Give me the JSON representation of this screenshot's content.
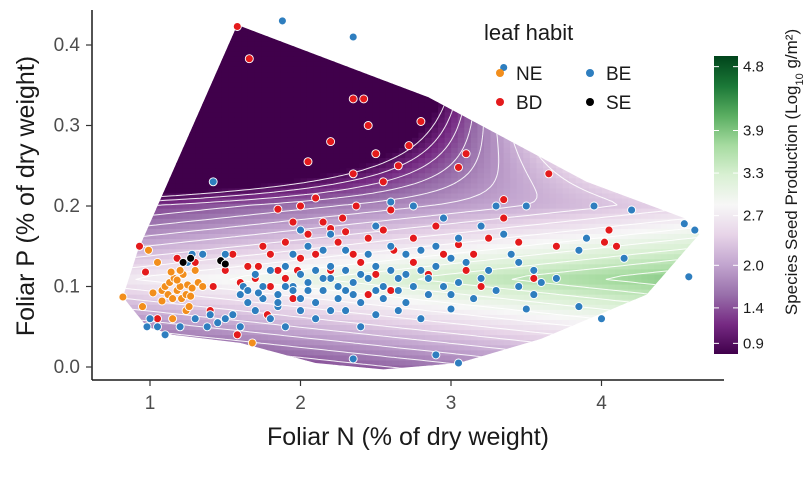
{
  "chart_data": {
    "type": "scatter",
    "xlabel": "Foliar N (% of dry weight)",
    "ylabel": "Foliar P (% of dry weight)",
    "xlim": [
      0.75,
      4.85
    ],
    "ylim": [
      -0.01,
      0.44
    ],
    "x_ticks": [
      1,
      2,
      3,
      4
    ],
    "y_ticks": [
      0.0,
      0.1,
      0.2,
      0.3,
      0.4
    ],
    "x_tick_labels": [
      "1",
      "2",
      "3",
      "4"
    ],
    "y_tick_labels": [
      "0.0",
      "0.1",
      "0.2",
      "0.3",
      "0.4"
    ],
    "grid": false,
    "legend": {
      "title": "leaf habit",
      "placement": "top-right",
      "entries": [
        {
          "name": "NE",
          "color": "#f28e1c"
        },
        {
          "name": "BE",
          "color": "#2e7ebf"
        },
        {
          "name": "BD",
          "color": "#e41a1c"
        },
        {
          "name": "SE",
          "color": "#000000"
        }
      ]
    },
    "colorbar": {
      "title_text": "Species Seed Production (Log",
      "title_sub": "10",
      "title_unit": " g/m²)",
      "ticks": [
        0.9,
        1.4,
        2.0,
        2.7,
        3.3,
        3.9,
        4.8
      ],
      "tick_labels": [
        "0.9",
        "1.4",
        "2.0",
        "2.7",
        "3.3",
        "3.9",
        "4.8"
      ],
      "range": [
        0.75,
        4.95
      ],
      "colors": [
        "#40004b",
        "#762a83",
        "#9970ab",
        "#c2a5cf",
        "#e7d4e8",
        "#f7f7f7",
        "#d9f0d3",
        "#a6dba0",
        "#5aae61",
        "#1b7837",
        "#00441b"
      ]
    },
    "surface": {
      "hull": [
        [
          0.82,
          0.087
        ],
        [
          0.98,
          0.05
        ],
        [
          1.15,
          0.04
        ],
        [
          1.6,
          0.03
        ],
        [
          2.1,
          0.005
        ],
        [
          2.55,
          -0.003
        ],
        [
          3.05,
          0.005
        ],
        [
          3.6,
          0.035
        ],
        [
          4.3,
          0.09
        ],
        [
          4.65,
          0.165
        ],
        [
          4.55,
          0.185
        ],
        [
          3.9,
          0.23
        ],
        [
          2.85,
          0.335
        ],
        [
          1.58,
          0.425
        ],
        [
          0.92,
          0.145
        ]
      ],
      "contour_levels": [
        0.9,
        1.1,
        1.3,
        1.5,
        1.7,
        1.9,
        2.1,
        2.3,
        2.5,
        2.7,
        2.9,
        3.1,
        3.3,
        3.5,
        3.7,
        3.9,
        4.1,
        4.3,
        4.5
      ]
    },
    "series": [
      {
        "name": "NE",
        "color": "#f28e1c",
        "points": [
          [
            0.82,
            0.087
          ],
          [
            0.95,
            0.075
          ],
          [
            1.02,
            0.092
          ],
          [
            1.05,
            0.13
          ],
          [
            1.08,
            0.095
          ],
          [
            1.1,
            0.1
          ],
          [
            1.12,
            0.09
          ],
          [
            1.13,
            0.105
          ],
          [
            1.15,
            0.085
          ],
          [
            1.16,
            0.11
          ],
          [
            1.18,
            0.095
          ],
          [
            1.2,
            0.1
          ],
          [
            1.21,
            0.085
          ],
          [
            1.22,
            0.115
          ],
          [
            1.24,
            0.09
          ],
          [
            1.25,
            0.102
          ],
          [
            1.27,
            0.088
          ],
          [
            1.28,
            0.098
          ],
          [
            1.3,
            0.12
          ],
          [
            1.32,
            0.105
          ],
          [
            1.24,
            0.07
          ],
          [
            1.2,
            0.12
          ],
          [
            1.18,
            0.108
          ],
          [
            1.15,
            0.06
          ],
          [
            0.99,
            0.145
          ],
          [
            1.08,
            0.082
          ],
          [
            1.14,
            0.118
          ],
          [
            1.26,
            0.075
          ],
          [
            1.35,
            0.1
          ],
          [
            1.68,
            0.03
          ]
        ]
      },
      {
        "name": "BD",
        "color": "#e41a1c",
        "points": [
          [
            1.58,
            0.423
          ],
          [
            1.66,
            0.383
          ],
          [
            2.35,
            0.333
          ],
          [
            2.42,
            0.333
          ],
          [
            2.65,
            0.25
          ],
          [
            2.8,
            0.305
          ],
          [
            2.72,
            0.275
          ],
          [
            2.45,
            0.3
          ],
          [
            2.5,
            0.265
          ],
          [
            3.1,
            0.265
          ],
          [
            3.05,
            0.248
          ],
          [
            3.65,
            0.24
          ],
          [
            3.35,
            0.208
          ],
          [
            4.05,
            0.17
          ],
          [
            4.02,
            0.155
          ],
          [
            4.1,
            0.15
          ],
          [
            2.2,
            0.28
          ],
          [
            2.35,
            0.24
          ],
          [
            2.05,
            0.255
          ],
          [
            2.37,
            0.2
          ],
          [
            2.55,
            0.23
          ],
          [
            2.6,
            0.195
          ],
          [
            2.1,
            0.21
          ],
          [
            2.15,
            0.18
          ],
          [
            2.2,
            0.172
          ],
          [
            2.28,
            0.185
          ],
          [
            2.3,
            0.168
          ],
          [
            1.85,
            0.196
          ],
          [
            1.95,
            0.18
          ],
          [
            2.05,
            0.165
          ],
          [
            1.75,
            0.15
          ],
          [
            1.8,
            0.14
          ],
          [
            1.9,
            0.155
          ],
          [
            2.0,
            0.135
          ],
          [
            2.45,
            0.16
          ],
          [
            2.55,
            0.17
          ],
          [
            2.75,
            0.16
          ],
          [
            2.9,
            0.175
          ],
          [
            3.05,
            0.152
          ],
          [
            3.15,
            0.14
          ],
          [
            3.25,
            0.16
          ],
          [
            3.45,
            0.155
          ],
          [
            3.55,
            0.11
          ],
          [
            1.5,
            0.12
          ],
          [
            1.55,
            0.14
          ],
          [
            1.6,
            0.105
          ],
          [
            1.65,
            0.125
          ],
          [
            1.7,
            0.11
          ],
          [
            1.72,
            0.125
          ],
          [
            1.85,
            0.12
          ],
          [
            1.9,
            0.11
          ],
          [
            2.2,
            0.12
          ],
          [
            2.35,
            0.14
          ],
          [
            2.5,
            0.115
          ],
          [
            2.75,
            0.13
          ],
          [
            2.85,
            0.115
          ],
          [
            2.95,
            0.14
          ],
          [
            3.1,
            0.12
          ],
          [
            3.2,
            0.1
          ],
          [
            1.4,
            0.07
          ],
          [
            1.58,
            0.04
          ],
          [
            1.78,
            0.065
          ],
          [
            1.95,
            0.085
          ],
          [
            2.45,
            0.09
          ],
          [
            2.6,
            0.095
          ],
          [
            1.42,
            0.1
          ],
          [
            1.3,
            0.13
          ],
          [
            0.97,
            0.118
          ],
          [
            0.93,
            0.15
          ],
          [
            1.18,
            0.135
          ],
          [
            1.05,
            0.06
          ],
          [
            2.0,
            0.2
          ],
          [
            2.25,
            0.155
          ],
          [
            2.62,
            0.145
          ],
          [
            1.98,
            0.12
          ],
          [
            2.1,
            0.14
          ],
          [
            2.4,
            0.13
          ],
          [
            1.8,
            0.1
          ],
          [
            3.35,
            0.185
          ],
          [
            3.7,
            0.15
          ]
        ]
      },
      {
        "name": "BE",
        "color": "#2e7ebf",
        "points": [
          [
            1.8,
            0.45
          ],
          [
            1.88,
            0.43
          ],
          [
            2.35,
            0.41
          ],
          [
            3.35,
            0.372
          ],
          [
            1.42,
            0.23
          ],
          [
            3.95,
            0.2
          ],
          [
            4.2,
            0.195
          ],
          [
            4.55,
            0.178
          ],
          [
            4.62,
            0.17
          ],
          [
            4.58,
            0.112
          ],
          [
            3.5,
            0.2
          ],
          [
            3.9,
            0.16
          ],
          [
            3.85,
            0.145
          ],
          [
            4.15,
            0.135
          ],
          [
            3.2,
            0.11
          ],
          [
            3.85,
            0.075
          ],
          [
            3.55,
            0.09
          ],
          [
            3.5,
            0.072
          ],
          [
            4.0,
            0.06
          ],
          [
            3.0,
            0.072
          ],
          [
            2.8,
            0.06
          ],
          [
            2.4,
            0.05
          ],
          [
            2.2,
            0.07
          ],
          [
            2.0,
            0.07
          ],
          [
            1.9,
            0.05
          ],
          [
            1.8,
            0.06
          ],
          [
            1.7,
            0.07
          ],
          [
            1.5,
            0.06
          ],
          [
            1.45,
            0.055
          ],
          [
            1.4,
            0.065
          ],
          [
            1.3,
            0.06
          ],
          [
            1.2,
            0.05
          ],
          [
            1.1,
            0.04
          ],
          [
            1.05,
            0.05
          ],
          [
            0.98,
            0.05
          ],
          [
            1.0,
            0.06
          ],
          [
            2.9,
            0.015
          ],
          [
            3.05,
            0.005
          ],
          [
            2.35,
            0.01
          ],
          [
            1.65,
            0.08
          ],
          [
            1.75,
            0.1
          ],
          [
            1.85,
            0.09
          ],
          [
            1.95,
            0.1
          ],
          [
            2.05,
            0.105
          ],
          [
            2.15,
            0.095
          ],
          [
            2.25,
            0.1
          ],
          [
            2.35,
            0.105
          ],
          [
            2.45,
            0.11
          ],
          [
            2.55,
            0.1
          ],
          [
            2.65,
            0.095
          ],
          [
            2.75,
            0.1
          ],
          [
            2.85,
            0.11
          ],
          [
            2.95,
            0.1
          ],
          [
            3.05,
            0.105
          ],
          [
            1.7,
            0.115
          ],
          [
            1.8,
            0.12
          ],
          [
            1.9,
            0.125
          ],
          [
            2.0,
            0.115
          ],
          [
            2.1,
            0.12
          ],
          [
            2.2,
            0.125
          ],
          [
            2.3,
            0.12
          ],
          [
            2.4,
            0.115
          ],
          [
            2.5,
            0.125
          ],
          [
            2.6,
            0.12
          ],
          [
            2.7,
            0.115
          ],
          [
            2.8,
            0.12
          ],
          [
            2.9,
            0.125
          ],
          [
            3.0,
            0.135
          ],
          [
            1.6,
            0.09
          ],
          [
            1.62,
            0.1
          ],
          [
            1.75,
            0.085
          ],
          [
            1.85,
            0.075
          ],
          [
            2.0,
            0.085
          ],
          [
            2.1,
            0.08
          ],
          [
            2.25,
            0.085
          ],
          [
            2.4,
            0.08
          ],
          [
            2.55,
            0.085
          ],
          [
            2.7,
            0.08
          ],
          [
            2.85,
            0.09
          ],
          [
            3.0,
            0.09
          ],
          [
            3.15,
            0.085
          ],
          [
            3.3,
            0.095
          ],
          [
            3.45,
            0.1
          ],
          [
            3.6,
            0.105
          ],
          [
            1.95,
            0.14
          ],
          [
            2.05,
            0.15
          ],
          [
            2.15,
            0.145
          ],
          [
            2.3,
            0.145
          ],
          [
            2.45,
            0.14
          ],
          [
            2.6,
            0.15
          ],
          [
            2.7,
            0.14
          ],
          [
            2.8,
            0.145
          ],
          [
            2.9,
            0.15
          ],
          [
            3.05,
            0.16
          ],
          [
            3.2,
            0.175
          ],
          [
            3.35,
            0.165
          ],
          [
            3.45,
            0.13
          ],
          [
            3.55,
            0.12
          ],
          [
            3.7,
            0.11
          ],
          [
            2.0,
            0.17
          ],
          [
            2.2,
            0.165
          ],
          [
            2.5,
            0.175
          ],
          [
            2.95,
            0.185
          ],
          [
            3.3,
            0.2
          ],
          [
            1.85,
            0.08
          ],
          [
            2.1,
            0.06
          ],
          [
            2.3,
            0.07
          ],
          [
            2.5,
            0.065
          ],
          [
            2.65,
            0.07
          ],
          [
            1.5,
            0.14
          ],
          [
            1.35,
            0.14
          ],
          [
            1.28,
            0.14
          ],
          [
            1.25,
            0.13
          ],
          [
            2.6,
            0.205
          ],
          [
            3.1,
            0.13
          ],
          [
            2.75,
            0.2
          ],
          [
            1.65,
            0.095
          ],
          [
            1.72,
            0.092
          ],
          [
            1.95,
            0.095
          ],
          [
            2.2,
            0.11
          ],
          [
            2.3,
            0.095
          ],
          [
            2.5,
            0.095
          ],
          [
            2.05,
            0.095
          ],
          [
            2.35,
            0.09
          ],
          [
            2.65,
            0.11
          ],
          [
            3.25,
            0.12
          ],
          [
            3.4,
            0.14
          ],
          [
            2.15,
            0.11
          ],
          [
            1.9,
            0.1
          ],
          [
            1.55,
            0.065
          ],
          [
            1.6,
            0.05
          ],
          [
            1.38,
            0.05
          ]
        ]
      },
      {
        "name": "SE",
        "color": "#000000",
        "points": [
          [
            1.22,
            0.13
          ],
          [
            1.27,
            0.135
          ],
          [
            1.47,
            0.132
          ],
          [
            1.5,
            0.128
          ]
        ]
      }
    ]
  }
}
